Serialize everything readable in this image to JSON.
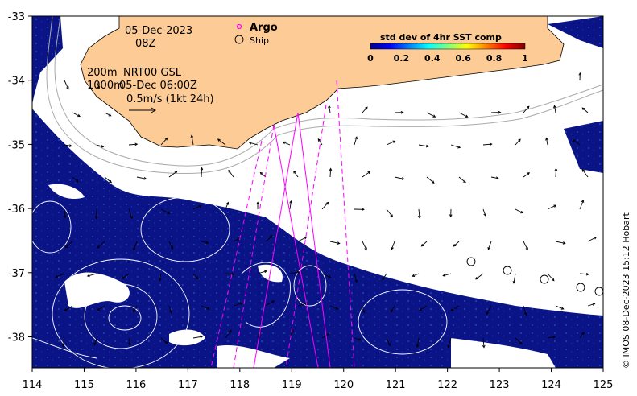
{
  "map": {
    "date_label": "05-Dec-2023",
    "time_label": "08Z",
    "depth_200": "200m",
    "depth_1000": "1000m",
    "product_label": "NRT00 GSL",
    "product_time": "05-Dec 06:00Z",
    "scale_label": "0.5m/s (1kt 24h)",
    "legend_argo": "Argo",
    "legend_ship": "Ship",
    "colorbar_title": "std dev of 4hr SST comp",
    "colorbar_ticks": [
      "0",
      "0.2",
      "0.4",
      "0.6",
      "0.8",
      "1"
    ],
    "credit": "© IMOS 08-Dec-2023 15:12 Hobart",
    "x_ticks": [
      "114",
      "115",
      "116",
      "117",
      "118",
      "119",
      "120",
      "121",
      "122",
      "123",
      "124",
      "125"
    ],
    "y_ticks": [
      "-33",
      "-34",
      "-35",
      "-36",
      "-37",
      "-38"
    ],
    "colors": {
      "land": "#fdcb95",
      "ocean_data": "#0a1487",
      "argo": "#ff00ff",
      "contour": "#ffffff",
      "bathymetry": "#aaaaaa"
    }
  }
}
